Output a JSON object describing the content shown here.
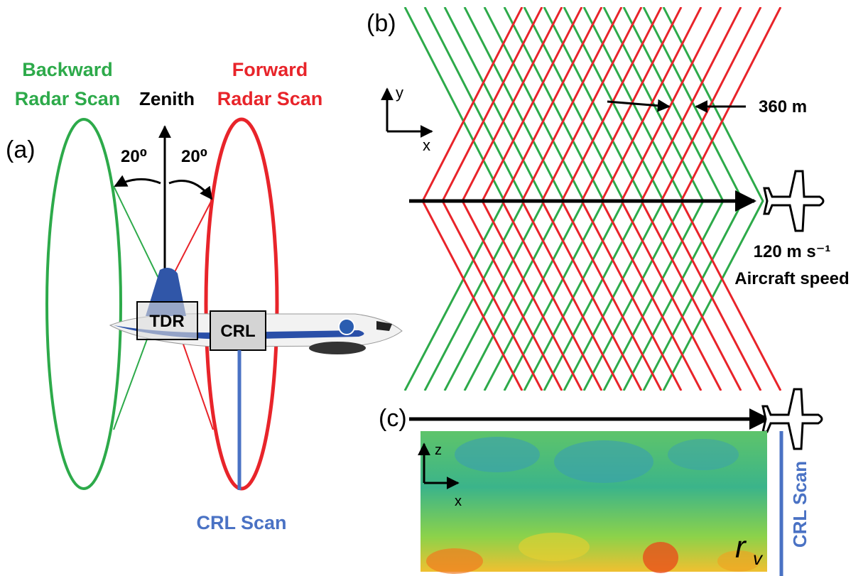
{
  "panel_a": {
    "label": "(a)",
    "backward_label": [
      "Backward",
      "Radar Scan"
    ],
    "forward_label": [
      "Forward",
      "Radar Scan"
    ],
    "zenith": "Zenith",
    "angle_left": "20⁰",
    "angle_right": "20⁰",
    "tdr": "TDR",
    "crl": "CRL",
    "crl_scan": "CRL Scan"
  },
  "panel_b": {
    "label": "(b)",
    "axis_y": "y",
    "axis_x": "x",
    "spacing": "360 m",
    "speed": "120 m s⁻¹",
    "speed_caption": "Aircraft speed"
  },
  "panel_c": {
    "label": "(c)",
    "axis_z": "z",
    "axis_x": "x",
    "crl_scan": "CRL Scan",
    "variable": "r",
    "variable_sub": "v"
  }
}
